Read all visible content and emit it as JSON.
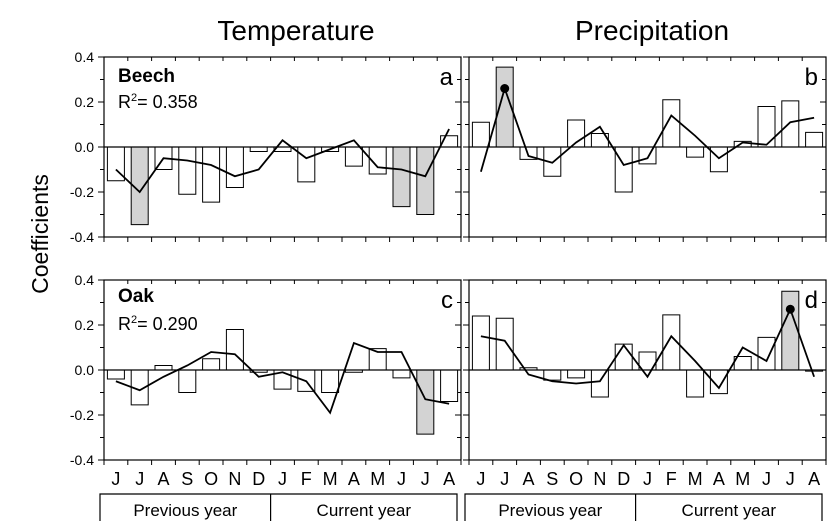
{
  "figure": {
    "ylabel": "Coefficients",
    "column_titles": [
      "Temperature",
      "Precipitation"
    ],
    "month_labels": [
      "J",
      "J",
      "A",
      "S",
      "O",
      "N",
      "D",
      "J",
      "F",
      "M",
      "A",
      "M",
      "J",
      "J",
      "A"
    ],
    "period_labels": [
      "Previous year",
      "Current year"
    ],
    "colors": {
      "open_bar": "#ffffff",
      "significant_bar": "#d3d3d3",
      "stroke": "#000000"
    }
  },
  "chart_data": [
    {
      "type": "bar",
      "panel_letter": "a",
      "species": "Beech",
      "r2_label": "R",
      "r2_sup": "2",
      "r2_value": "= 0.358",
      "categories": [
        "J",
        "J",
        "A",
        "S",
        "O",
        "N",
        "D",
        "J",
        "F",
        "M",
        "A",
        "M",
        "J",
        "J",
        "A"
      ],
      "values": [
        -0.15,
        -0.345,
        -0.1,
        -0.21,
        -0.245,
        -0.18,
        -0.02,
        -0.02,
        -0.155,
        -0.02,
        -0.085,
        -0.12,
        -0.265,
        -0.3,
        0.05
      ],
      "significant": [
        false,
        true,
        false,
        false,
        false,
        false,
        false,
        false,
        false,
        false,
        false,
        false,
        true,
        true,
        false
      ],
      "line": [
        -0.1,
        -0.2,
        -0.05,
        -0.06,
        -0.08,
        -0.13,
        -0.1,
        0.03,
        -0.05,
        -0.01,
        0.03,
        -0.09,
        -0.1,
        -0.13,
        0.08
      ],
      "markers": [],
      "ylim": [
        -0.4,
        0.4
      ],
      "yticks": [
        "0.4",
        "0.2",
        "0.0",
        "-0.2",
        "-0.4"
      ],
      "yticks_values": [
        0.4,
        0.2,
        0.0,
        -0.2,
        -0.4
      ]
    },
    {
      "type": "bar",
      "panel_letter": "b",
      "categories": [
        "J",
        "J",
        "A",
        "S",
        "O",
        "N",
        "D",
        "J",
        "F",
        "M",
        "A",
        "M",
        "J",
        "J",
        "A"
      ],
      "values": [
        0.11,
        0.355,
        -0.055,
        -0.13,
        0.12,
        0.06,
        -0.2,
        -0.075,
        0.21,
        -0.045,
        -0.11,
        0.025,
        0.18,
        0.205,
        0.065
      ],
      "significant": [
        false,
        true,
        false,
        false,
        false,
        false,
        false,
        false,
        false,
        false,
        false,
        false,
        false,
        false,
        false
      ],
      "line": [
        -0.11,
        0.26,
        -0.04,
        -0.07,
        0.02,
        0.09,
        -0.08,
        -0.05,
        0.14,
        0.05,
        -0.05,
        0.02,
        0.01,
        0.11,
        0.13
      ],
      "markers": [
        1
      ],
      "ylim": [
        -0.4,
        0.4
      ]
    },
    {
      "type": "bar",
      "panel_letter": "c",
      "species": "Oak",
      "r2_label": "R",
      "r2_sup": "2",
      "r2_value": "= 0.290",
      "categories": [
        "J",
        "J",
        "A",
        "S",
        "O",
        "N",
        "D",
        "J",
        "F",
        "M",
        "A",
        "M",
        "J",
        "J",
        "A"
      ],
      "values": [
        -0.04,
        -0.155,
        0.02,
        -0.1,
        0.05,
        0.18,
        -0.01,
        -0.085,
        -0.095,
        -0.1,
        -0.01,
        0.095,
        -0.035,
        -0.285,
        -0.14
      ],
      "significant": [
        false,
        false,
        false,
        false,
        false,
        false,
        false,
        false,
        false,
        false,
        false,
        false,
        false,
        true,
        false
      ],
      "line": [
        -0.05,
        -0.09,
        -0.03,
        0.02,
        0.08,
        0.07,
        -0.03,
        -0.01,
        -0.05,
        -0.19,
        0.12,
        0.08,
        0.08,
        -0.13,
        -0.15
      ],
      "markers": [],
      "ylim": [
        -0.4,
        0.4
      ],
      "yticks": [
        "0.4",
        "0.2",
        "0.0",
        "-0.2",
        "-0.4"
      ],
      "yticks_values": [
        0.4,
        0.2,
        0.0,
        -0.2,
        -0.4
      ]
    },
    {
      "type": "bar",
      "panel_letter": "d",
      "categories": [
        "J",
        "J",
        "A",
        "S",
        "O",
        "N",
        "D",
        "J",
        "F",
        "M",
        "A",
        "M",
        "J",
        "J",
        "A"
      ],
      "values": [
        0.24,
        0.23,
        0.01,
        -0.045,
        -0.035,
        -0.12,
        0.115,
        0.08,
        0.245,
        -0.12,
        -0.105,
        0.06,
        0.145,
        0.35,
        -0.005
      ],
      "significant": [
        false,
        false,
        false,
        false,
        false,
        false,
        false,
        false,
        false,
        false,
        false,
        false,
        false,
        true,
        false
      ],
      "line": [
        0.15,
        0.13,
        -0.02,
        -0.05,
        -0.06,
        -0.05,
        0.11,
        -0.03,
        0.15,
        0.04,
        -0.08,
        0.1,
        0.04,
        0.27,
        -0.03
      ],
      "markers": [
        13
      ],
      "ylim": [
        -0.4,
        0.4
      ]
    }
  ]
}
